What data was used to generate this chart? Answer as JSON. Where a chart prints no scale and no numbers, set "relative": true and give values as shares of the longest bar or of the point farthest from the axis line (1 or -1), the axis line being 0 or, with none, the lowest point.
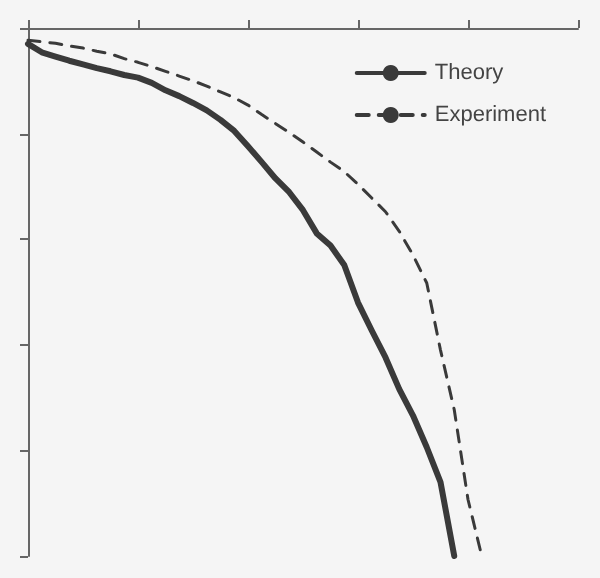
{
  "chart_data": {
    "type": "line",
    "relative": true,
    "legend": "top right",
    "marker": "none",
    "categories": [
      null,
      null,
      null,
      null,
      null,
      null,
      null,
      null,
      null,
      null,
      null,
      null,
      null,
      null,
      null,
      null,
      null,
      null,
      null,
      null,
      null,
      null,
      null,
      null,
      null,
      null,
      null,
      null,
      null,
      null,
      null,
      null,
      null,
      null,
      null,
      null,
      null,
      null,
      null,
      null,
      null
    ],
    "series": [
      {
        "name": "Theory",
        "color": "#3a3a3a",
        "line_style": "solid",
        "values": [
          -0.03,
          -0.046,
          -0.054,
          -0.062,
          -0.069,
          -0.076,
          -0.082,
          -0.089,
          -0.094,
          -0.104,
          -0.118,
          -0.129,
          -0.142,
          -0.156,
          -0.174,
          -0.195,
          -0.224,
          -0.254,
          -0.285,
          -0.311,
          -0.345,
          -0.389,
          -0.412,
          -0.449,
          -0.52,
          -0.573,
          -0.624,
          -0.684,
          -0.734,
          -0.794,
          -0.86,
          -1,
          null,
          null,
          null,
          null,
          null,
          null,
          null,
          null,
          null
        ]
      },
      {
        "name": "Experiment",
        "color": "#3a3a3a",
        "line_style": "dashed",
        "values": [
          -0.023,
          -0.026,
          -0.029,
          -0.034,
          -0.038,
          -0.044,
          -0.049,
          -0.058,
          -0.065,
          -0.073,
          -0.082,
          -0.091,
          -0.1,
          -0.11,
          -0.121,
          -0.132,
          -0.146,
          -0.164,
          -0.181,
          -0.198,
          -0.216,
          -0.235,
          -0.254,
          -0.272,
          -0.296,
          -0.322,
          -0.348,
          -0.385,
          -0.43,
          -0.483,
          -0.61,
          -0.723,
          -0.893,
          -1,
          null,
          null,
          null,
          null,
          null,
          null,
          null
        ]
      }
    ]
  }
}
